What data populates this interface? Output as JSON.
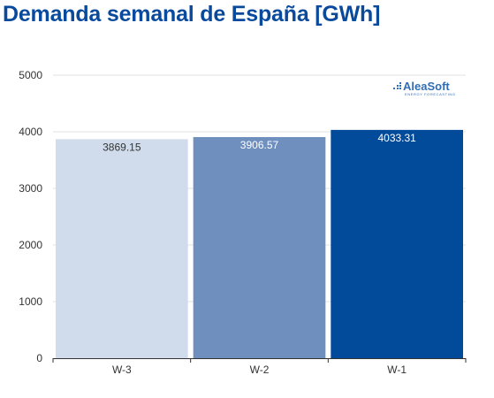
{
  "chart_data": {
    "type": "bar",
    "title": "Demanda semanal de España [GWh]",
    "categories": [
      "W-3",
      "W-2",
      "W-1"
    ],
    "values": [
      3869.15,
      3906.57,
      4033.31
    ],
    "value_labels": [
      "3869.15",
      "3906.57",
      "4033.31"
    ],
    "bar_colors": [
      "#d0dcec",
      "#6f8fbf",
      "#024a9a"
    ],
    "label_colors": [
      "#333333",
      "#ffffff",
      "#ffffff"
    ],
    "ylim": [
      0,
      5000
    ],
    "yticks": [
      0,
      1000,
      2000,
      3000,
      4000,
      5000
    ],
    "grid": true,
    "xlabel": "",
    "ylabel": ""
  },
  "watermark": {
    "brand": "AleaSoft",
    "tagline": "ENERGY FORECASTING"
  }
}
